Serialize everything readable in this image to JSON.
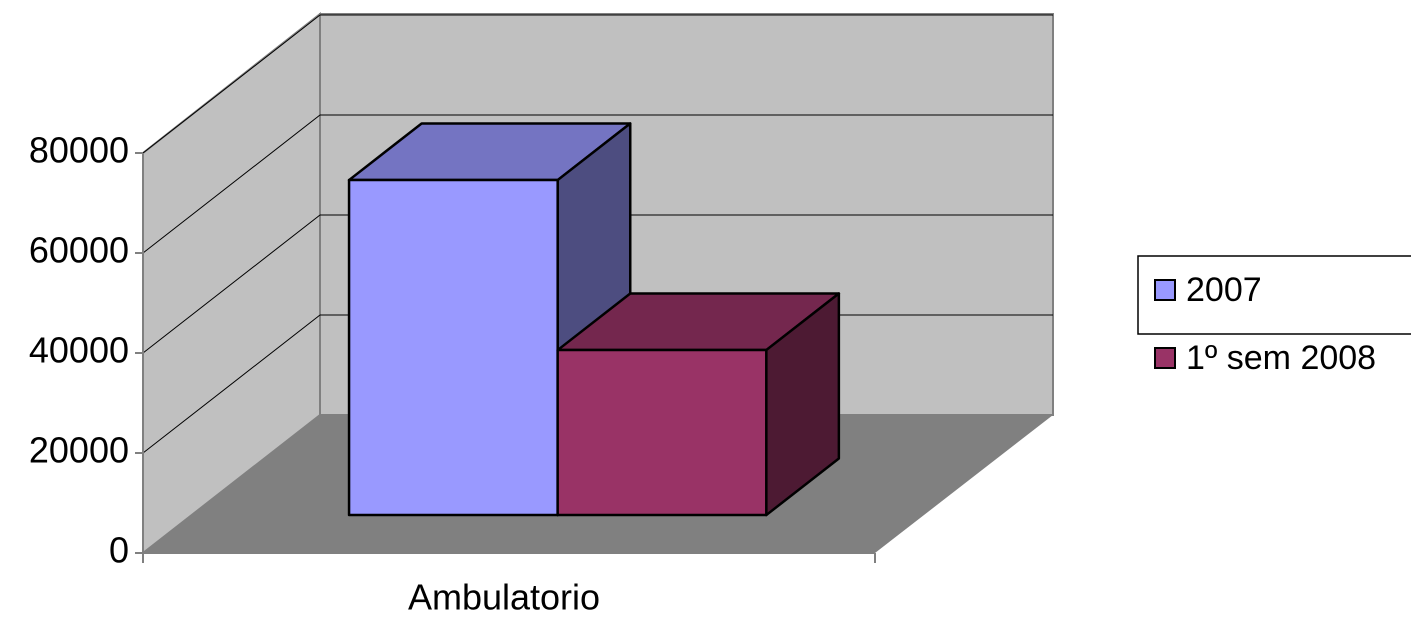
{
  "chart_data": {
    "type": "bar3d",
    "categories": [
      "Ambulatorio"
    ],
    "series": [
      {
        "name": "2007",
        "color": "#9999ff",
        "values": [
          67000
        ]
      },
      {
        "name": "1º sem 2008",
        "color": "#993366",
        "values": [
          33000
        ]
      }
    ],
    "ylim": [
      0,
      80000
    ],
    "yticks": [
      0,
      20000,
      40000,
      60000,
      80000
    ],
    "grid": true
  }
}
